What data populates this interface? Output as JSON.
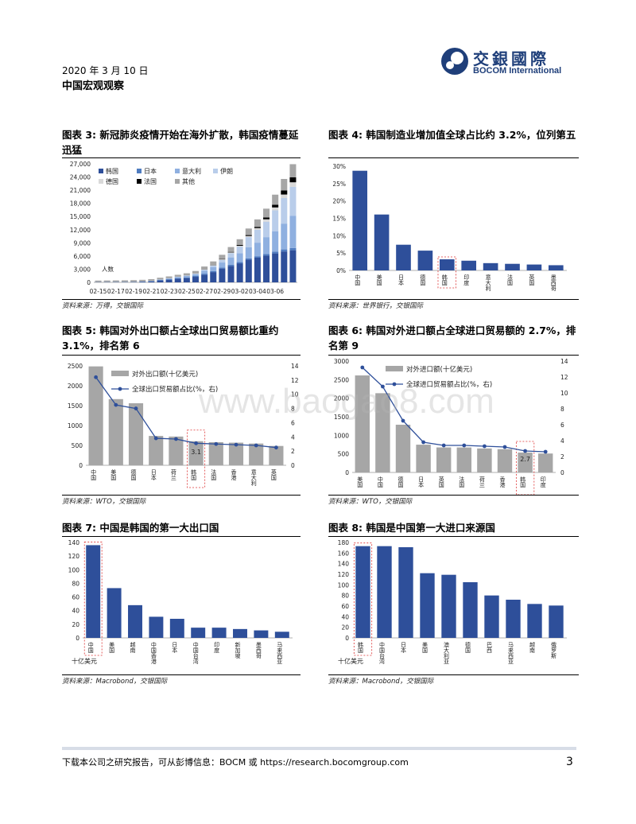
{
  "header": {
    "date": "2020 年 3 月 10 日",
    "title": "中国宏观观察",
    "logo_cn": "交銀國際",
    "logo_en": "BOCOM International"
  },
  "watermark": "www.baogao8.com",
  "footer": {
    "text": "下载本公司之研究报告，可从彭博信息：BOCM 或 https://research.bocomgroup.com",
    "page": "3"
  },
  "chart_data": [
    {
      "id": "c3",
      "type": "bar",
      "title": "图表 3: 新冠肺炎疫情开始在海外扩散，韩国疫情蔓延迅猛",
      "source": "资料来源：万得，交银国际",
      "ylabel": "人数",
      "ylim": [
        0,
        27000
      ],
      "yticks": [
        "0",
        "3,000",
        "6,000",
        "9,000",
        "12,000",
        "15,000",
        "18,000",
        "21,000",
        "24,000",
        "27,000"
      ],
      "categories": [
        "02-15",
        "02-16",
        "02-17",
        "02-18",
        "02-19",
        "02-20",
        "02-21",
        "02-22",
        "02-23",
        "02-24",
        "02-25",
        "02-26",
        "02-27",
        "02-28",
        "02-29",
        "03-01",
        "03-02",
        "03-03",
        "03-04",
        "03-05",
        "03-06",
        "03-07",
        "03-08"
      ],
      "xtick_labels": [
        "02-15",
        "02-17",
        "02-19",
        "02-21",
        "02-23",
        "02-25",
        "02-27",
        "02-29",
        "03-02",
        "03-04",
        "03-06"
      ],
      "colors": {
        "韩国": "#2e4f9a",
        "日本": "#4f7cc0",
        "意大利": "#8fb0e0",
        "伊朗": "#b9cdea",
        "德国": "#d9d9d9",
        "法国": "#000000",
        "其他": "#a6a6a6"
      },
      "series": [
        {
          "name": "韩国",
          "values": [
            28,
            29,
            30,
            31,
            51,
            104,
            204,
            433,
            602,
            833,
            977,
            1261,
            1766,
            2337,
            3150,
            3736,
            4335,
            5186,
            5621,
            6088,
            6593,
            7041,
            7313
          ]
        },
        {
          "name": "日本",
          "values": [
            43,
            53,
            59,
            66,
            73,
            85,
            93,
            105,
            132,
            144,
            164,
            186,
            210,
            230,
            241,
            256,
            274,
            293,
            331,
            360,
            420,
            461,
            502
          ]
        },
        {
          "name": "意大利",
          "values": [
            3,
            3,
            3,
            3,
            3,
            4,
            20,
            79,
            150,
            229,
            322,
            400,
            650,
            888,
            1128,
            1694,
            2036,
            2502,
            3089,
            3858,
            4636,
            5883,
            7375
          ]
        },
        {
          "name": "伊朗",
          "values": [
            0,
            0,
            0,
            0,
            2,
            5,
            18,
            28,
            43,
            61,
            95,
            139,
            245,
            388,
            593,
            978,
            1501,
            2336,
            2922,
            3513,
            4747,
            5823,
            6566
          ]
        },
        {
          "name": "德国",
          "values": [
            16,
            16,
            16,
            16,
            16,
            16,
            16,
            16,
            16,
            16,
            18,
            26,
            53,
            66,
            117,
            150,
            188,
            240,
            400,
            545,
            670,
            800,
            1040
          ]
        },
        {
          "name": "法国",
          "values": [
            12,
            12,
            12,
            12,
            12,
            12,
            12,
            12,
            12,
            12,
            14,
            18,
            38,
            57,
            100,
            130,
            191,
            212,
            285,
            423,
            613,
            949,
            1126
          ]
        },
        {
          "name": "其他",
          "values": [
            300,
            310,
            320,
            330,
            340,
            350,
            360,
            380,
            400,
            430,
            480,
            560,
            650,
            800,
            950,
            1100,
            1300,
            1500,
            1700,
            2000,
            2300,
            2600,
            3000
          ]
        }
      ]
    },
    {
      "id": "c4",
      "type": "bar",
      "title": "图表 4: 韩国制造业增加值全球占比约 3.2%，位列第五",
      "source": "资料来源：世界银行，交银国际",
      "ylim": [
        0,
        0.3
      ],
      "yticks": [
        "0%",
        "5%",
        "10%",
        "15%",
        "20%",
        "25%",
        "30%"
      ],
      "categories": [
        "中国",
        "美国",
        "日本",
        "德国",
        "韩国",
        "印度",
        "意大利",
        "法国",
        "英国",
        "墨西哥"
      ],
      "values": [
        28.7,
        16.1,
        7.4,
        5.7,
        3.2,
        2.8,
        2.1,
        1.9,
        1.7,
        1.5
      ],
      "highlight": "韩国",
      "color": "#2e4f9a"
    },
    {
      "id": "c5",
      "type": "bar",
      "title": "图表 5: 韩国对外出口额占全球出口贸易额比重约 3.1%，排名第 6",
      "source": "资料来源：WTO，交银国际",
      "ylim": [
        0,
        2500
      ],
      "yticks": [
        "0",
        "500",
        "1000",
        "1500",
        "2000",
        "2500"
      ],
      "y2lim": [
        0,
        14
      ],
      "y2ticks": [
        "0",
        "2",
        "4",
        "6",
        "8",
        "10",
        "12",
        "14"
      ],
      "categories": [
        "中国",
        "美国",
        "德国",
        "日本",
        "荷兰",
        "韩国",
        "法国",
        "香港",
        "意大利",
        "英国"
      ],
      "series": [
        {
          "name": "对外出口额(十亿美元)",
          "type": "bar",
          "values": [
            2487,
            1664,
            1560,
            738,
            723,
            605,
            581,
            569,
            547,
            486
          ]
        },
        {
          "name": "全球出口贸易额占比(%，右)",
          "type": "line",
          "values": [
            12.4,
            8.5,
            8.0,
            3.8,
            3.7,
            3.1,
            3.0,
            2.9,
            2.8,
            2.5
          ]
        }
      ],
      "annotation": "3.1",
      "highlight": "韩国"
    },
    {
      "id": "c6",
      "type": "bar",
      "title": "图表 6: 韩国对外进口额占全球进口贸易额的 2.7%，排名第 9",
      "source": "资料来源：WTO，交银国际",
      "ylim": [
        0,
        3000
      ],
      "yticks": [
        "0",
        "500",
        "1000",
        "1500",
        "2000",
        "2500",
        "3000"
      ],
      "y2lim": [
        0,
        14
      ],
      "y2ticks": [
        "0",
        "2",
        "4",
        "6",
        "8",
        "10",
        "12",
        "14"
      ],
      "categories": [
        "美国",
        "中国",
        "德国",
        "日本",
        "英国",
        "法国",
        "荷兰",
        "香港",
        "韩国",
        "印度"
      ],
      "series": [
        {
          "name": "对外进口额(十亿美元)",
          "type": "bar",
          "values": [
            2614,
            2135,
            1286,
            748,
            674,
            673,
            646,
            627,
            535,
            510
          ]
        },
        {
          "name": "全球进口贸易额占比(%，右)",
          "type": "line",
          "values": [
            13.2,
            10.8,
            6.5,
            3.8,
            3.4,
            3.4,
            3.3,
            3.2,
            2.7,
            2.6
          ]
        }
      ],
      "annotation": "2.7",
      "highlight": "韩国"
    },
    {
      "id": "c7",
      "type": "bar",
      "title": "图表 7: 中国是韩国的第一大出口国",
      "source": "资料来源：Macrobond，交银国际",
      "unit": "十亿美元",
      "ylim": [
        0,
        140
      ],
      "yticks": [
        "0",
        "20",
        "40",
        "60",
        "80",
        "100",
        "120",
        "140"
      ],
      "categories": [
        "中国",
        "美国",
        "越南",
        "中国香港",
        "日本",
        "中国台湾",
        "印度",
        "新加坡",
        "墨西哥",
        "马来西亚"
      ],
      "values": [
        136,
        73,
        48,
        31,
        28,
        15,
        15,
        13,
        11,
        9
      ],
      "highlight": "中国",
      "color": "#2e4f9a"
    },
    {
      "id": "c8",
      "type": "bar",
      "title": "图表 8: 韩国是中国第一大进口来源国",
      "source": "资料来源：Macrobond，交银国际",
      "unit": "十亿美元",
      "ylim": [
        0,
        180
      ],
      "yticks": [
        "0",
        "20",
        "40",
        "60",
        "80",
        "100",
        "120",
        "140",
        "160",
        "180"
      ],
      "categories": [
        "韩国",
        "中国台湾",
        "日本",
        "美国",
        "澳大利亚",
        "德国",
        "巴西",
        "马来西亚",
        "越南",
        "俄罗斯"
      ],
      "values": [
        173,
        173,
        171,
        122,
        119,
        105,
        80,
        72,
        64,
        61
      ],
      "highlight": "韩国",
      "color": "#2e4f9a"
    }
  ]
}
